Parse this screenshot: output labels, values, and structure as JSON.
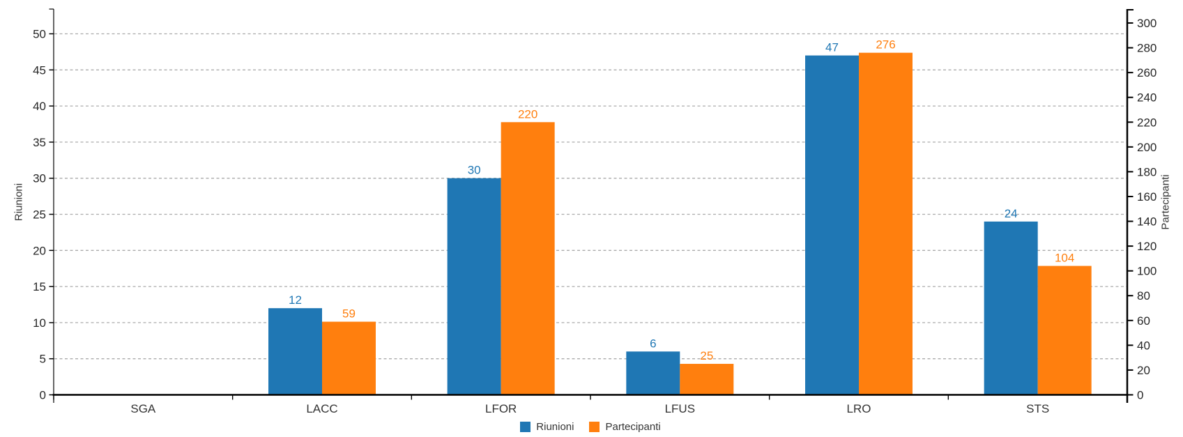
{
  "chart_data": {
    "type": "bar",
    "subtype": "grouped-dual-axis",
    "categories": [
      "SGA",
      "LACC",
      "LFOR",
      "LFUS",
      "LRO",
      "STS"
    ],
    "series": [
      {
        "name": "Riunioni",
        "axis": "left",
        "color": "#1f77b4",
        "values": [
          0,
          12,
          30,
          6,
          47,
          24
        ]
      },
      {
        "name": "Partecipanti",
        "axis": "right",
        "color": "#ff7f0e",
        "values": [
          0,
          59,
          220,
          25,
          276,
          104
        ]
      }
    ],
    "data_labels": {
      "show": true,
      "hide_zero": true,
      "riunioni": [
        "",
        "12",
        "30",
        "6",
        "47",
        "24"
      ],
      "partecipanti": [
        "",
        "59",
        "220",
        "25",
        "276",
        "104"
      ]
    },
    "left_axis": {
      "title": "Riunioni",
      "min": 0,
      "max": 50,
      "tick_step": 5,
      "ticks": [
        0,
        5,
        10,
        15,
        20,
        25,
        30,
        35,
        40,
        45,
        50
      ]
    },
    "right_axis": {
      "title": "Partecipanti",
      "min": 0,
      "max": 300,
      "tick_step": 20,
      "ticks": [
        0,
        20,
        40,
        60,
        80,
        100,
        120,
        140,
        160,
        180,
        200,
        220,
        240,
        260,
        280,
        300
      ]
    },
    "grid": {
      "show": true,
      "style": "dashed",
      "color": "#ababab",
      "on_left_ticks": true
    },
    "legend": {
      "position": "bottom-center",
      "entries": [
        "Riunioni",
        "Partecipanti"
      ]
    },
    "colors": {
      "axis_line": "#000000",
      "tick_label": "#262626",
      "category_label": "#333333",
      "background": "#ffffff"
    }
  }
}
